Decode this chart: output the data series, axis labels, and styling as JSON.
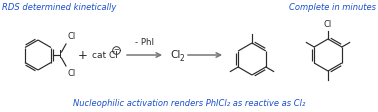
{
  "bg_color": "#ffffff",
  "blue_color": "#1a4fcc",
  "black_color": "#2a2a2a",
  "gray_color": "#777777",
  "top_left_text": "RDS determined kinetically",
  "top_right_text": "Complete in minutes",
  "bottom_text": "Nucleophilic activation renders PhICl₂ as reactive as Cl₂",
  "above_arrow1": "- PhI",
  "mid_label": "Cl₂",
  "figsize": [
    3.78,
    1.12
  ],
  "dpi": 100
}
